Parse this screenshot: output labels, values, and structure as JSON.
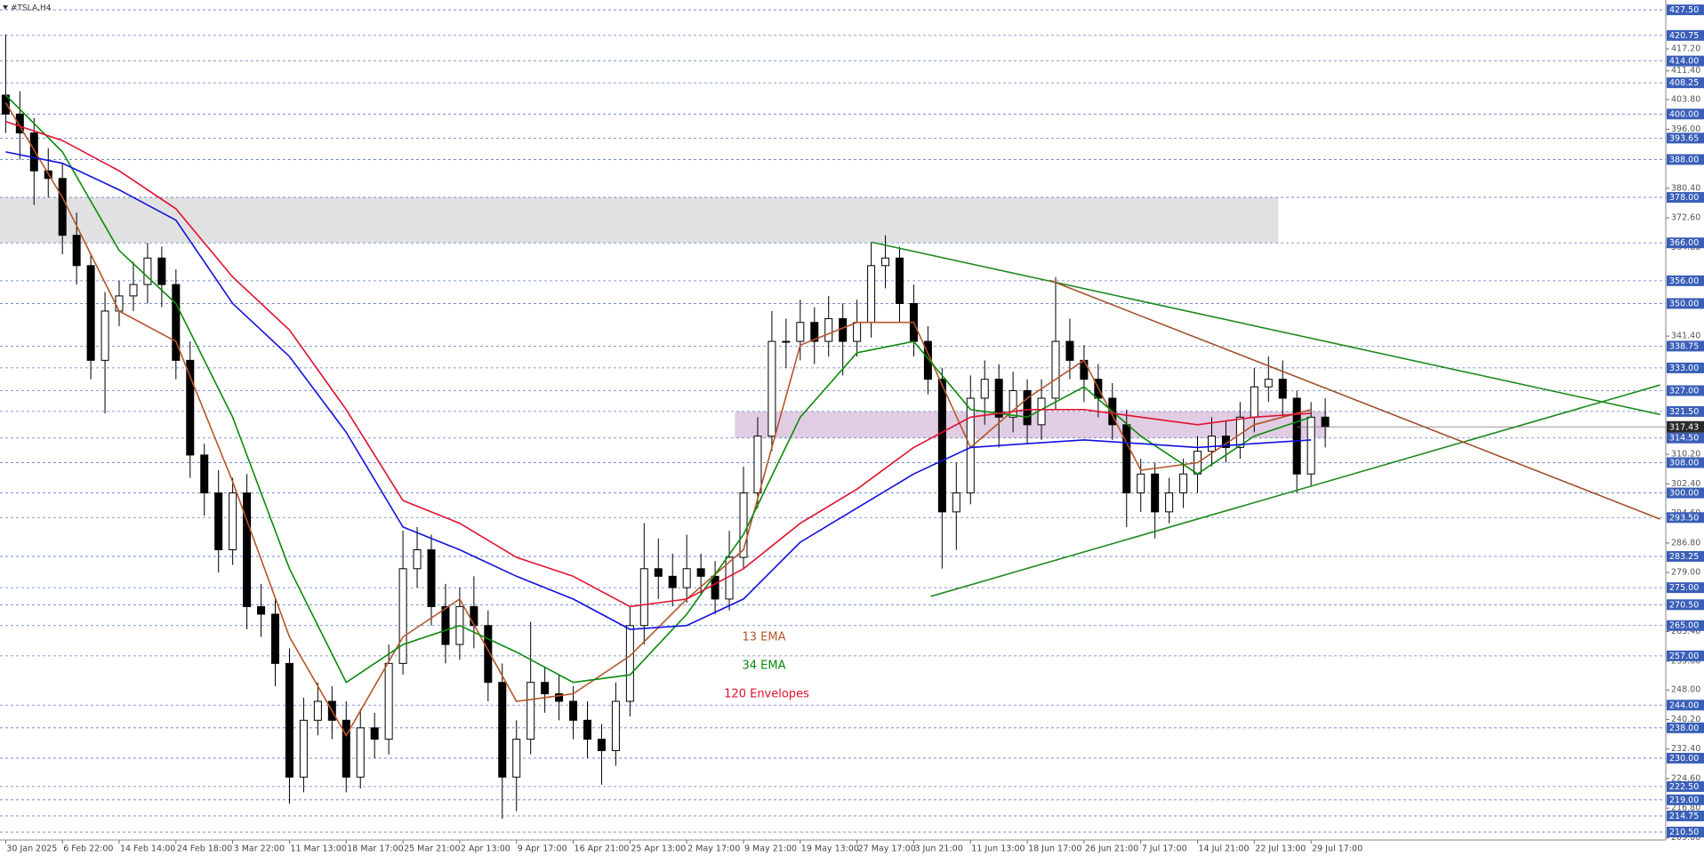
{
  "chart_data": {
    "type": "candlestick",
    "title": "#TSLA,H4",
    "open": [
      405,
      400,
      395,
      385,
      383,
      368,
      360,
      335,
      348,
      352,
      355,
      362,
      355,
      335,
      310,
      300,
      285,
      300,
      270,
      268,
      255,
      225,
      240,
      245,
      240,
      225,
      238,
      235,
      255,
      280,
      285,
      270,
      260,
      270,
      265,
      250,
      225,
      235,
      250,
      247,
      245,
      240,
      235,
      232,
      245,
      265,
      280,
      278,
      275,
      280,
      278,
      272,
      283,
      300,
      315,
      340,
      340,
      345,
      340,
      346,
      340,
      345,
      360,
      362,
      350,
      340,
      330,
      295,
      300,
      325,
      330,
      320,
      327,
      318,
      325,
      340,
      335,
      330,
      325,
      318,
      300,
      305,
      295,
      300,
      305,
      311,
      315,
      312,
      320,
      328,
      330,
      325,
      305,
      320
    ],
    "high": [
      421,
      406,
      399,
      391,
      387,
      374,
      363,
      353,
      356,
      361,
      366,
      365,
      359,
      340,
      313,
      306,
      304,
      305,
      276,
      272,
      259,
      246,
      250,
      249,
      245,
      243,
      242,
      260,
      290,
      291,
      289,
      276,
      275,
      278,
      269,
      255,
      240,
      266,
      254,
      252,
      249,
      245,
      239,
      250,
      270,
      292,
      288,
      284,
      289,
      284,
      282,
      290,
      307,
      320,
      348,
      346,
      351,
      349,
      352,
      350,
      351,
      366,
      368,
      365,
      355,
      344,
      333,
      308,
      331,
      335,
      334,
      332,
      330,
      330,
      357,
      346,
      339,
      334,
      329,
      322,
      309,
      308,
      304,
      309,
      315,
      320,
      319,
      324,
      333,
      336,
      335,
      327,
      324,
      325
    ],
    "low": [
      395,
      388,
      376,
      378,
      363,
      355,
      330,
      321,
      344,
      348,
      350,
      349,
      330,
      304,
      294,
      279,
      281,
      264,
      262,
      249,
      218,
      221,
      236,
      235,
      221,
      222,
      230,
      231,
      252,
      275,
      265,
      255,
      256,
      259,
      245,
      214,
      216,
      231,
      242,
      240,
      235,
      230,
      223,
      228,
      241,
      260,
      272,
      270,
      271,
      273,
      268,
      269,
      280,
      296,
      311,
      333,
      335,
      334,
      336,
      331,
      336,
      341,
      354,
      345,
      336,
      326,
      280,
      285,
      297,
      318,
      312,
      316,
      313,
      314,
      322,
      330,
      324,
      320,
      314,
      291,
      295,
      288,
      292,
      296,
      300,
      307,
      308,
      309,
      316,
      324,
      320,
      300,
      302,
      312
    ],
    "close": [
      400,
      395,
      385,
      383,
      368,
      360,
      335,
      348,
      352,
      355,
      362,
      355,
      335,
      310,
      300,
      285,
      300,
      270,
      268,
      255,
      225,
      240,
      245,
      240,
      225,
      238,
      235,
      255,
      280,
      285,
      270,
      260,
      270,
      265,
      250,
      225,
      235,
      250,
      247,
      245,
      240,
      235,
      232,
      245,
      265,
      280,
      278,
      275,
      280,
      278,
      272,
      283,
      300,
      315,
      340,
      340,
      345,
      340,
      346,
      340,
      345,
      360,
      362,
      350,
      340,
      330,
      295,
      300,
      325,
      330,
      320,
      327,
      318,
      325,
      340,
      335,
      330,
      325,
      318,
      300,
      305,
      295,
      300,
      305,
      311,
      315,
      312,
      320,
      328,
      330,
      325,
      305,
      320,
      317.43
    ],
    "xlim": [
      -0.4,
      117
    ],
    "xticks": [
      {
        "value": 0,
        "label": "30 Jan 2025"
      },
      {
        "value": 4,
        "label": "6 Feb 22:00"
      },
      {
        "value": 8,
        "label": "14 Feb 14:00"
      },
      {
        "value": 12,
        "label": "24 Feb 18:00"
      },
      {
        "value": 16,
        "label": "3 Mar 22:00"
      },
      {
        "value": 20,
        "label": "11 Mar 13:00"
      },
      {
        "value": 24,
        "label": "18 Mar 17:00"
      },
      {
        "value": 28,
        "label": "25 Mar 21:00"
      },
      {
        "value": 32,
        "label": "2 Apr 13:00"
      },
      {
        "value": 36,
        "label": "9 Apr 17:00"
      },
      {
        "value": 40,
        "label": "16 Apr 21:00"
      },
      {
        "value": 44,
        "label": "25 Apr 13:00"
      },
      {
        "value": 48,
        "label": "2 May 17:00"
      },
      {
        "value": 52,
        "label": "9 May 21:00"
      },
      {
        "value": 56,
        "label": "19 May 13:00"
      },
      {
        "value": 60,
        "label": "27 May 17:00"
      },
      {
        "value": 64,
        "label": "3 Jun 21:00"
      },
      {
        "value": 68,
        "label": "11 Jun 13:00"
      },
      {
        "value": 72,
        "label": "18 Jun 17:00"
      },
      {
        "value": 76,
        "label": "26 Jun 21:00"
      },
      {
        "value": 80,
        "label": "7 Jul 17:00"
      },
      {
        "value": 84,
        "label": "14 Jul 21:00"
      },
      {
        "value": 88,
        "label": "22 Jul 13:00"
      },
      {
        "value": 92,
        "label": "29 Jul 17:00"
      }
    ],
    "ylim": [
      208.4,
      430.1
    ],
    "yticks": [
      {
        "value": 209,
        "label": "209.00"
      },
      {
        "value": 216.8,
        "label": "216.80"
      },
      {
        "value": 224.6,
        "label": "224.60"
      },
      {
        "value": 232.4,
        "label": "232.40"
      },
      {
        "value": 240.2,
        "label": "240.20"
      },
      {
        "value": 248,
        "label": "248.00"
      },
      {
        "value": 255.6,
        "label": "255.60"
      },
      {
        "value": 263.4,
        "label": "263.40"
      },
      {
        "value": 279,
        "label": "279.00"
      },
      {
        "value": 286.8,
        "label": "286.80"
      },
      {
        "value": 294.6,
        "label": "294.60"
      },
      {
        "value": 302.4,
        "label": "302.40"
      },
      {
        "value": 310.2,
        "label": "310.20"
      },
      {
        "value": 341.4,
        "label": "341.40"
      },
      {
        "value": 364.8,
        "label": "364.80"
      },
      {
        "value": 372.6,
        "label": "372.60"
      },
      {
        "value": 380.4,
        "label": "380.40"
      },
      {
        "value": 396,
        "label": "396.00"
      },
      {
        "value": 403.8,
        "label": "403.80"
      },
      {
        "value": 411.4,
        "label": "411.40"
      },
      {
        "value": 417.2,
        "label": "417.20"
      }
    ],
    "levels": [
      {
        "value": 427.5,
        "label": "427.50"
      },
      420.75,
      {
        "value": 414,
        "label": "414.00"
      },
      408.25,
      {
        "value": 400,
        "label": "400.00"
      },
      393.65,
      {
        "value": 388,
        "label": "388.00"
      },
      {
        "value": 378,
        "label": "378.00"
      },
      {
        "value": 366,
        "label": "366.00"
      },
      {
        "value": 356,
        "label": "356.00"
      },
      {
        "value": 350,
        "label": "350.00"
      },
      338.75,
      {
        "value": 333,
        "label": "333.00"
      },
      {
        "value": 327,
        "label": "327.00"
      },
      {
        "value": 321.5,
        "label": "321.50"
      },
      {
        "value": 314.5,
        "label": "314.50"
      },
      {
        "value": 308,
        "label": "308.00"
      },
      {
        "value": 300,
        "label": "300.00"
      },
      {
        "value": 293.5,
        "label": "293.50"
      },
      283.25,
      {
        "value": 275,
        "label": "275.00"
      },
      {
        "value": 270.5,
        "label": "270.50"
      },
      {
        "value": 265,
        "label": "265.00"
      },
      {
        "value": 257,
        "label": "257.00"
      },
      {
        "value": 244,
        "label": "244.00"
      },
      {
        "value": 238,
        "label": "238.00"
      },
      {
        "value": 230,
        "label": "230.00"
      },
      {
        "value": 222.5,
        "label": "222.50"
      },
      {
        "value": 219,
        "label": "219.00"
      },
      214.75,
      {
        "value": 210.5,
        "label": "210.50"
      }
    ],
    "level_color": "#3a5fb8",
    "current_price": 317.43,
    "zones": [
      {
        "low": 366,
        "high": 378,
        "x": [
          -0.4,
          89.7
        ],
        "color": "#dcdcdc"
      },
      {
        "low": 314.5,
        "high": 321.5,
        "x": [
          51.4,
          93.1
        ],
        "color": "#dcc4de"
      }
    ],
    "trendlines": [
      {
        "color": "#1f8a1f",
        "points": [
          [
            61,
            366.2
          ],
          [
            116.6,
            320.7
          ]
        ]
      },
      {
        "color": "#1f8a1f",
        "points": [
          [
            65.2,
            272.7
          ],
          [
            116.6,
            328.5
          ]
        ]
      },
      {
        "color": "#a0522d",
        "points": [
          [
            73.6,
            356.1
          ],
          [
            116.6,
            293.1
          ]
        ]
      }
    ],
    "series": [
      {
        "name": "13 EMA",
        "color": "#b4562a",
        "x": [
          0,
          4,
          8,
          12,
          16,
          20,
          24,
          28,
          32,
          36,
          40,
          44,
          48,
          52,
          56,
          60,
          64,
          68,
          72,
          76,
          80,
          84,
          88,
          92
        ],
        "values": [
          403,
          378,
          348,
          340,
          303,
          262,
          236,
          262,
          272,
          245,
          247,
          257,
          272,
          285,
          339,
          345,
          345,
          312,
          325,
          335,
          306,
          308,
          318,
          322
        ]
      },
      {
        "name": "34 EMA",
        "color": "#0a8a0a",
        "x": [
          0,
          4,
          8,
          12,
          16,
          20,
          24,
          28,
          32,
          36,
          40,
          44,
          48,
          52,
          56,
          60,
          64,
          68,
          72,
          76,
          80,
          84,
          88,
          92
        ],
        "values": [
          405,
          390,
          364,
          350,
          320,
          280,
          250,
          260,
          265,
          258,
          250,
          252,
          268,
          289,
          320,
          337,
          340,
          322,
          320,
          328,
          315,
          305,
          315,
          320
        ]
      },
      {
        "name": "120 Envelopes",
        "color": "#e0102f",
        "x": [
          0,
          4,
          8,
          12,
          16,
          20,
          24,
          28,
          32,
          36,
          40,
          44,
          48,
          52,
          56,
          60,
          64,
          68,
          72,
          76,
          80,
          84,
          88,
          92
        ],
        "values": [
          398,
          393,
          385,
          375,
          357,
          343,
          322,
          298,
          292,
          283,
          278,
          270,
          272,
          280,
          292,
          301,
          312,
          320,
          322,
          322,
          320,
          318,
          320,
          321
        ]
      },
      {
        "color": "#1010e0",
        "x": [
          0,
          4,
          8,
          12,
          16,
          20,
          24,
          28,
          32,
          36,
          40,
          44,
          48,
          52,
          56,
          60,
          64,
          68,
          72,
          76,
          80,
          84,
          88,
          92
        ],
        "values": [
          390,
          387,
          380,
          372,
          350,
          336,
          316,
          291,
          285,
          278,
          272,
          264,
          265,
          272,
          287,
          296,
          305,
          312,
          313,
          314,
          313,
          312,
          313,
          314
        ]
      }
    ]
  }
}
